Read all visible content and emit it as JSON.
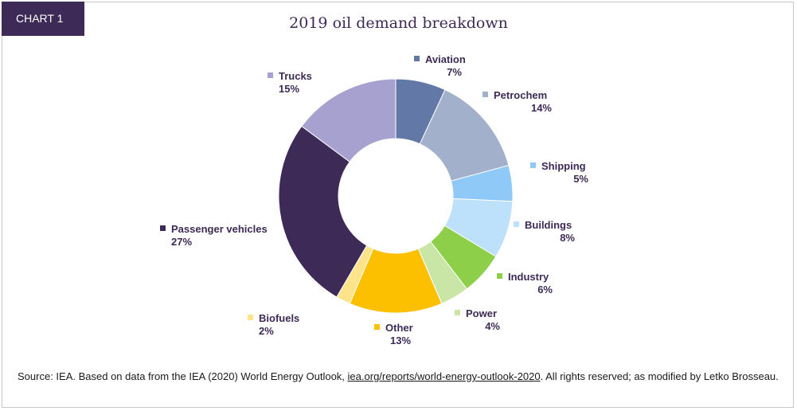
{
  "badge": "CHART 1",
  "chart_data": {
    "type": "pie",
    "title": "2019 oil demand breakdown",
    "unit": "%",
    "categories": [
      "Aviation",
      "Petrochem",
      "Shipping",
      "Buildings",
      "Industry",
      "Power",
      "Other",
      "Biofuels",
      "Passenger vehicles",
      "Trucks"
    ],
    "values": [
      7,
      14,
      5,
      8,
      6,
      4,
      13,
      2,
      27,
      15
    ],
    "value_labels": [
      "7%",
      "14%",
      "5%",
      "8%",
      "6%",
      "4%",
      "13%",
      "2%",
      "27%",
      "15%"
    ],
    "colors": [
      "#6279a8",
      "#a3b0cc",
      "#8ec9f8",
      "#bde0fb",
      "#8ecf4a",
      "#c9e6a6",
      "#fdc000",
      "#fde38a",
      "#3d2a56",
      "#a7a1cf"
    ],
    "legend": "none"
  },
  "source": {
    "prefix": "Source: IEA. Based on data from the IEA (2020) World Energy Outlook, ",
    "link": "iea.org/reports/world-energy-outlook-2020",
    "suffix": ". All rights reserved; as modified by Letko Brosseau."
  }
}
